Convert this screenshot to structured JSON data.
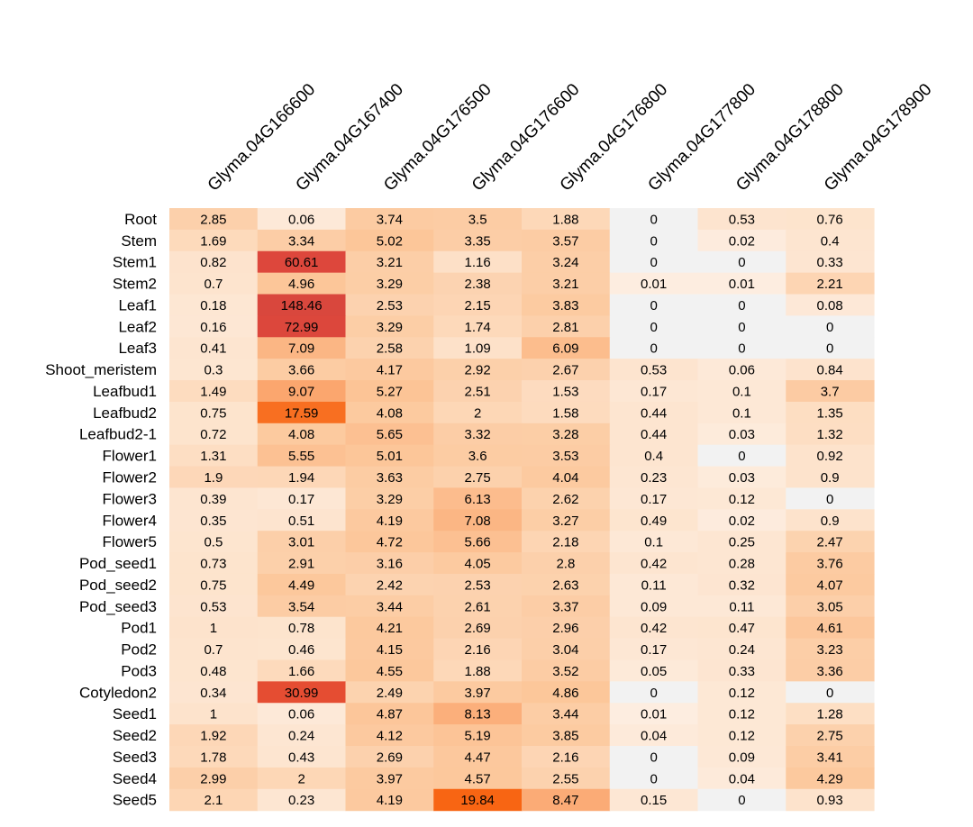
{
  "chart_data": {
    "type": "heatmap",
    "title": "",
    "xlabel": "",
    "ylabel": "",
    "columns": [
      "Glyma.04G166600",
      "Glyma.04G167400",
      "Glyma.04G176500",
      "Glyma.04G176600",
      "Glyma.04G176800",
      "Glyma.04G177800",
      "Glyma.04G178800",
      "Glyma.04G178900"
    ],
    "rows": [
      "Root",
      "Stem",
      "Stem1",
      "Stem2",
      "Leaf1",
      "Leaf2",
      "Leaf3",
      "Shoot_meristem",
      "Leafbud1",
      "Leafbud2",
      "Leafbud2-1",
      "Flower1",
      "Flower2",
      "Flower3",
      "Flower4",
      "Flower5",
      "Pod_seed1",
      "Pod_seed2",
      "Pod_seed3",
      "Pod1",
      "Pod2",
      "Pod3",
      "Cotyledon2",
      "Seed1",
      "Seed2",
      "Seed3",
      "Seed4",
      "Seed5"
    ],
    "values": [
      [
        "2.85",
        "0.06",
        "3.74",
        "3.5",
        "1.88",
        "0",
        "0.53",
        "0.76"
      ],
      [
        "1.69",
        "3.34",
        "5.02",
        "3.35",
        "3.57",
        "0",
        "0.02",
        "0.4"
      ],
      [
        "0.82",
        "60.61",
        "3.21",
        "1.16",
        "3.24",
        "0",
        "0",
        "0.33"
      ],
      [
        "0.7",
        "4.96",
        "3.29",
        "2.38",
        "3.21",
        "0.01",
        "0.01",
        "2.21"
      ],
      [
        "0.18",
        "148.46",
        "2.53",
        "2.15",
        "3.83",
        "0",
        "0",
        "0.08"
      ],
      [
        "0.16",
        "72.99",
        "3.29",
        "1.74",
        "2.81",
        "0",
        "0",
        "0"
      ],
      [
        "0.41",
        "7.09",
        "2.58",
        "1.09",
        "6.09",
        "0",
        "0",
        "0"
      ],
      [
        "0.3",
        "3.66",
        "4.17",
        "2.92",
        "2.67",
        "0.53",
        "0.06",
        "0.84"
      ],
      [
        "1.49",
        "9.07",
        "5.27",
        "2.51",
        "1.53",
        "0.17",
        "0.1",
        "3.7"
      ],
      [
        "0.75",
        "17.59",
        "4.08",
        "2",
        "1.58",
        "0.44",
        "0.1",
        "1.35"
      ],
      [
        "0.72",
        "4.08",
        "5.65",
        "3.32",
        "3.28",
        "0.44",
        "0.03",
        "1.32"
      ],
      [
        "1.31",
        "5.55",
        "5.01",
        "3.6",
        "3.53",
        "0.4",
        "0",
        "0.92"
      ],
      [
        "1.9",
        "1.94",
        "3.63",
        "2.75",
        "4.04",
        "0.23",
        "0.03",
        "0.9"
      ],
      [
        "0.39",
        "0.17",
        "3.29",
        "6.13",
        "2.62",
        "0.17",
        "0.12",
        "0"
      ],
      [
        "0.35",
        "0.51",
        "4.19",
        "7.08",
        "3.27",
        "0.49",
        "0.02",
        "0.9"
      ],
      [
        "0.5",
        "3.01",
        "4.72",
        "5.66",
        "2.18",
        "0.1",
        "0.25",
        "2.47"
      ],
      [
        "0.73",
        "2.91",
        "3.16",
        "4.05",
        "2.8",
        "0.42",
        "0.28",
        "3.76"
      ],
      [
        "0.75",
        "4.49",
        "2.42",
        "2.53",
        "2.63",
        "0.11",
        "0.32",
        "4.07"
      ],
      [
        "0.53",
        "3.54",
        "3.44",
        "2.61",
        "3.37",
        "0.09",
        "0.11",
        "3.05"
      ],
      [
        "1",
        "0.78",
        "4.21",
        "2.69",
        "2.96",
        "0.42",
        "0.47",
        "4.61"
      ],
      [
        "0.7",
        "0.46",
        "4.15",
        "2.16",
        "3.04",
        "0.17",
        "0.24",
        "3.23"
      ],
      [
        "0.48",
        "1.66",
        "4.55",
        "1.88",
        "3.52",
        "0.05",
        "0.33",
        "3.36"
      ],
      [
        "0.34",
        "30.99",
        "2.49",
        "3.97",
        "4.86",
        "0",
        "0.12",
        "0"
      ],
      [
        "1",
        "0.06",
        "4.87",
        "8.13",
        "3.44",
        "0.01",
        "0.12",
        "1.28"
      ],
      [
        "1.92",
        "0.24",
        "4.12",
        "5.19",
        "3.85",
        "0.04",
        "0.12",
        "2.75"
      ],
      [
        "1.78",
        "0.43",
        "2.69",
        "4.47",
        "2.16",
        "0",
        "0.09",
        "3.41"
      ],
      [
        "2.99",
        "2",
        "3.97",
        "4.57",
        "2.55",
        "0",
        "0.04",
        "4.29"
      ],
      [
        "2.1",
        "0.23",
        "4.19",
        "19.84",
        "8.47",
        "0.15",
        "0",
        "0.93"
      ]
    ],
    "color_scale": {
      "zero": "#f2f2f2",
      "stops": [
        {
          "value": 0.01,
          "color": "#fdede0"
        },
        {
          "value": 1,
          "color": "#fde3cc"
        },
        {
          "value": 5,
          "color": "#fcc699"
        },
        {
          "value": 8,
          "color": "#fbb07d"
        },
        {
          "value": 20,
          "color": "#f86412"
        },
        {
          "value": 35,
          "color": "#e0473b"
        },
        {
          "value": 150,
          "color": "#d9473d"
        }
      ]
    }
  }
}
